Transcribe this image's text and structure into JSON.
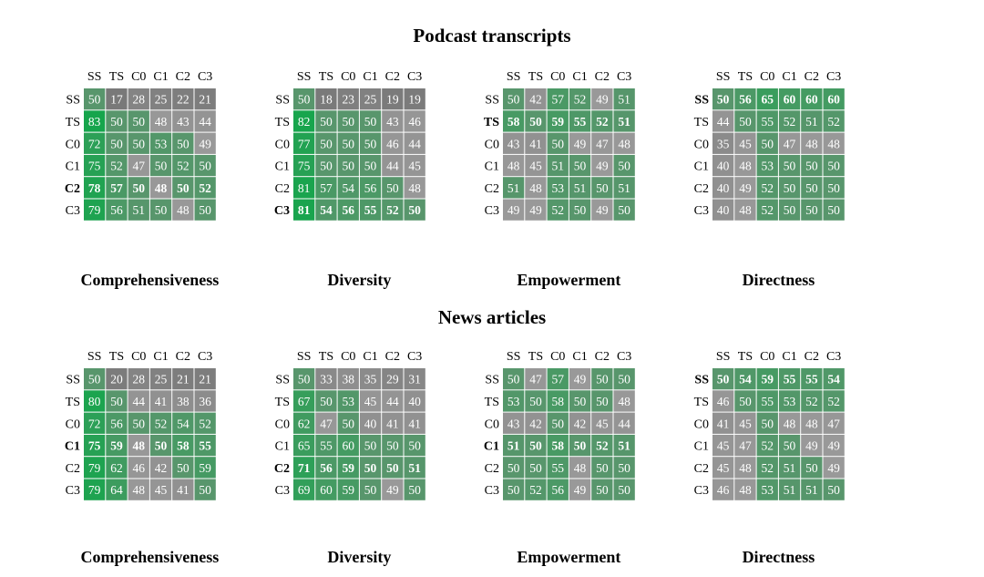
{
  "sections": [
    {
      "title": "Podcast transcripts",
      "charts": [
        {
          "title": "Comprehensiveness",
          "rows": [
            "SS",
            "TS",
            "C0",
            "C1",
            "C2",
            "C3"
          ],
          "cols": [
            "SS",
            "TS",
            "C0",
            "C1",
            "C2",
            "C3"
          ],
          "bold_row": "C2",
          "values": [
            [
              50,
              17,
              28,
              25,
              22,
              21
            ],
            [
              83,
              50,
              50,
              48,
              43,
              44
            ],
            [
              72,
              50,
              50,
              53,
              50,
              49
            ],
            [
              75,
              52,
              47,
              50,
              52,
              50
            ],
            [
              78,
              57,
              50,
              48,
              50,
              52
            ],
            [
              79,
              56,
              51,
              50,
              48,
              50
            ]
          ]
        },
        {
          "title": "Diversity",
          "rows": [
            "SS",
            "TS",
            "C0",
            "C1",
            "C2",
            "C3"
          ],
          "cols": [
            "SS",
            "TS",
            "C0",
            "C1",
            "C2",
            "C3"
          ],
          "bold_row": "C3",
          "values": [
            [
              50,
              18,
              23,
              25,
              19,
              19
            ],
            [
              82,
              50,
              50,
              50,
              43,
              46
            ],
            [
              77,
              50,
              50,
              50,
              46,
              44
            ],
            [
              75,
              50,
              50,
              50,
              44,
              45
            ],
            [
              81,
              57,
              54,
              56,
              50,
              48
            ],
            [
              81,
              54,
              56,
              55,
              52,
              50
            ]
          ]
        },
        {
          "title": "Empowerment",
          "rows": [
            "SS",
            "TS",
            "C0",
            "C1",
            "C2",
            "C3"
          ],
          "cols": [
            "SS",
            "TS",
            "C0",
            "C1",
            "C2",
            "C3"
          ],
          "bold_row": "TS",
          "values": [
            [
              50,
              42,
              57,
              52,
              49,
              51
            ],
            [
              58,
              50,
              59,
              55,
              52,
              51
            ],
            [
              43,
              41,
              50,
              49,
              47,
              48
            ],
            [
              48,
              45,
              51,
              50,
              49,
              50
            ],
            [
              51,
              48,
              53,
              51,
              50,
              51
            ],
            [
              49,
              49,
              52,
              50,
              49,
              50
            ]
          ]
        },
        {
          "title": "Directness",
          "rows": [
            "SS",
            "TS",
            "C0",
            "C1",
            "C2",
            "C3"
          ],
          "cols": [
            "SS",
            "TS",
            "C0",
            "C1",
            "C2",
            "C3"
          ],
          "bold_row": "SS",
          "values": [
            [
              50,
              56,
              65,
              60,
              60,
              60
            ],
            [
              44,
              50,
              55,
              52,
              51,
              52
            ],
            [
              35,
              45,
              50,
              47,
              48,
              48
            ],
            [
              40,
              48,
              53,
              50,
              50,
              50
            ],
            [
              40,
              49,
              52,
              50,
              50,
              50
            ],
            [
              40,
              48,
              52,
              50,
              50,
              50
            ]
          ]
        }
      ]
    },
    {
      "title": "News articles",
      "charts": [
        {
          "title": "Comprehensiveness",
          "rows": [
            "SS",
            "TS",
            "C0",
            "C1",
            "C2",
            "C3"
          ],
          "cols": [
            "SS",
            "TS",
            "C0",
            "C1",
            "C2",
            "C3"
          ],
          "bold_row": "C1",
          "values": [
            [
              50,
              20,
              28,
              25,
              21,
              21
            ],
            [
              80,
              50,
              44,
              41,
              38,
              36
            ],
            [
              72,
              56,
              50,
              52,
              54,
              52
            ],
            [
              75,
              59,
              48,
              50,
              58,
              55
            ],
            [
              79,
              62,
              46,
              42,
              50,
              59
            ],
            [
              79,
              64,
              48,
              45,
              41,
              50
            ]
          ]
        },
        {
          "title": "Diversity",
          "rows": [
            "SS",
            "TS",
            "C0",
            "C1",
            "C2",
            "C3"
          ],
          "cols": [
            "SS",
            "TS",
            "C0",
            "C1",
            "C2",
            "C3"
          ],
          "bold_row": "C2",
          "values": [
            [
              50,
              33,
              38,
              35,
              29,
              31
            ],
            [
              67,
              50,
              53,
              45,
              44,
              40
            ],
            [
              62,
              47,
              50,
              40,
              41,
              41
            ],
            [
              65,
              55,
              60,
              50,
              50,
              50
            ],
            [
              71,
              56,
              59,
              50,
              50,
              51
            ],
            [
              69,
              60,
              59,
              50,
              49,
              50
            ]
          ]
        },
        {
          "title": "Empowerment",
          "rows": [
            "SS",
            "TS",
            "C0",
            "C1",
            "C2",
            "C3"
          ],
          "cols": [
            "SS",
            "TS",
            "C0",
            "C1",
            "C2",
            "C3"
          ],
          "bold_row": "C1",
          "values": [
            [
              50,
              47,
              57,
              49,
              50,
              50
            ],
            [
              53,
              50,
              58,
              50,
              50,
              48
            ],
            [
              43,
              42,
              50,
              42,
              45,
              44
            ],
            [
              51,
              50,
              58,
              50,
              52,
              51
            ],
            [
              50,
              50,
              55,
              48,
              50,
              50
            ],
            [
              50,
              52,
              56,
              49,
              50,
              50
            ]
          ]
        },
        {
          "title": "Directness",
          "rows": [
            "SS",
            "TS",
            "C0",
            "C1",
            "C2",
            "C3"
          ],
          "cols": [
            "SS",
            "TS",
            "C0",
            "C1",
            "C2",
            "C3"
          ],
          "bold_row": "SS",
          "values": [
            [
              50,
              54,
              59,
              55,
              55,
              54
            ],
            [
              46,
              50,
              55,
              53,
              52,
              52
            ],
            [
              41,
              45,
              50,
              48,
              48,
              47
            ],
            [
              45,
              47,
              52,
              50,
              49,
              49
            ],
            [
              45,
              48,
              52,
              51,
              50,
              49
            ],
            [
              46,
              48,
              53,
              51,
              51,
              50
            ]
          ]
        }
      ]
    }
  ],
  "chart_data": {
    "type": "heatmap",
    "colors": {
      "low": "#777777",
      "mid": "#9a9a9a",
      "high": "#12a64a",
      "text": "#ffffff"
    }
  }
}
